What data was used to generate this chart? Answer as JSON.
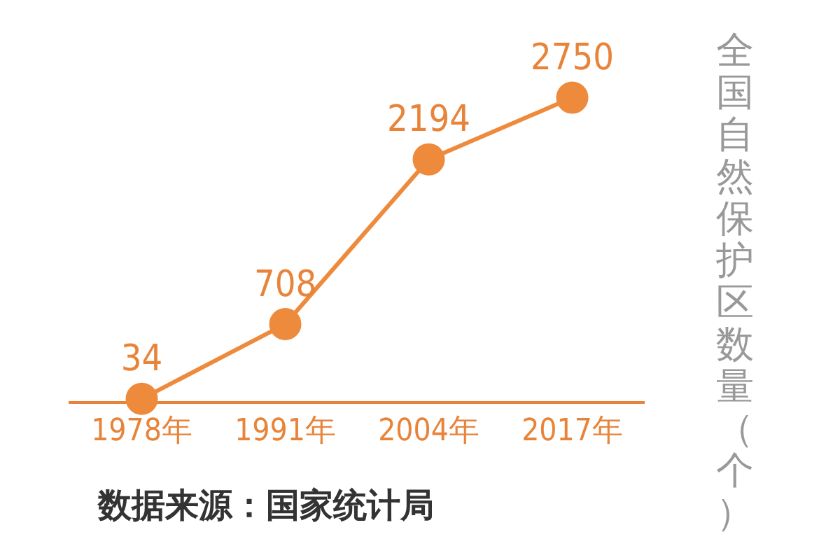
{
  "chart_data": {
    "type": "line",
    "ylabel": "全国自然保护区数量（个）",
    "annotations": [
      "数据来源：国家统计局"
    ],
    "categories": [
      "1978年",
      "1991年",
      "2004年",
      "2017年"
    ],
    "series": [
      {
        "color": "#ee8a3c",
        "values": [
          34,
          708,
          2194,
          2750
        ]
      }
    ],
    "data_labels": true,
    "marker": "circle",
    "line_style": "solid"
  }
}
